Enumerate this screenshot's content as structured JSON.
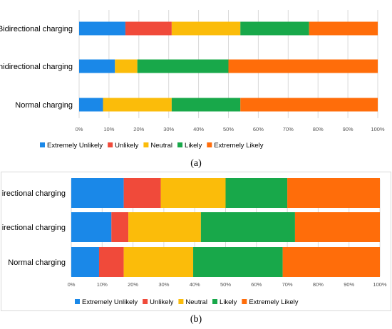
{
  "chart_data": [
    {
      "type": "bar",
      "orientation": "horizontal",
      "stacked": "percent",
      "categories": [
        "Bidirectional charging",
        "Unidirectional charging",
        "Normal charging"
      ],
      "series": [
        {
          "name": "Extremely Unlikely",
          "color": "#1a88e8",
          "values": [
            15.5,
            12,
            8
          ]
        },
        {
          "name": "Unlikely",
          "color": "#f04a3a",
          "values": [
            15.5,
            0,
            0
          ]
        },
        {
          "name": "Neutral",
          "color": "#fbbc0a",
          "values": [
            23,
            7.5,
            23
          ]
        },
        {
          "name": "Likely",
          "color": "#18a84a",
          "values": [
            23,
            30.5,
            23
          ]
        },
        {
          "name": "Extremely Likely",
          "color": "#ff6d0a",
          "values": [
            23,
            50,
            46
          ]
        }
      ],
      "xticks": [
        "0%",
        "10%",
        "20%",
        "30%",
        "40%",
        "50%",
        "60%",
        "70%",
        "80%",
        "90%",
        "100%"
      ],
      "xlim": [
        0,
        100
      ],
      "grid": true,
      "legend": "bottom",
      "caption": "(a)"
    },
    {
      "type": "bar",
      "orientation": "horizontal",
      "stacked": "percent",
      "categories": [
        "Bidirectional charging",
        "Unidirectional charging",
        "Normal charging"
      ],
      "series": [
        {
          "name": "Extremely Unlikely",
          "color": "#1a88e8",
          "values": [
            17,
            13,
            9
          ]
        },
        {
          "name": "Unlikely",
          "color": "#f04a3a",
          "values": [
            12,
            5.5,
            8
          ]
        },
        {
          "name": "Neutral",
          "color": "#fbbc0a",
          "values": [
            21,
            23.5,
            22.5
          ]
        },
        {
          "name": "Likely",
          "color": "#18a84a",
          "values": [
            20,
            30.5,
            29
          ]
        },
        {
          "name": "Extremely Likely",
          "color": "#ff6d0a",
          "values": [
            30,
            27.5,
            31.5
          ]
        }
      ],
      "xticks": [
        "0%",
        "10%",
        "20%",
        "30%",
        "40%",
        "50%",
        "60%",
        "70%",
        "80%",
        "90%",
        "100%"
      ],
      "xlim": [
        0,
        100
      ],
      "grid": true,
      "legend": "bottom",
      "caption": "(b)"
    }
  ]
}
